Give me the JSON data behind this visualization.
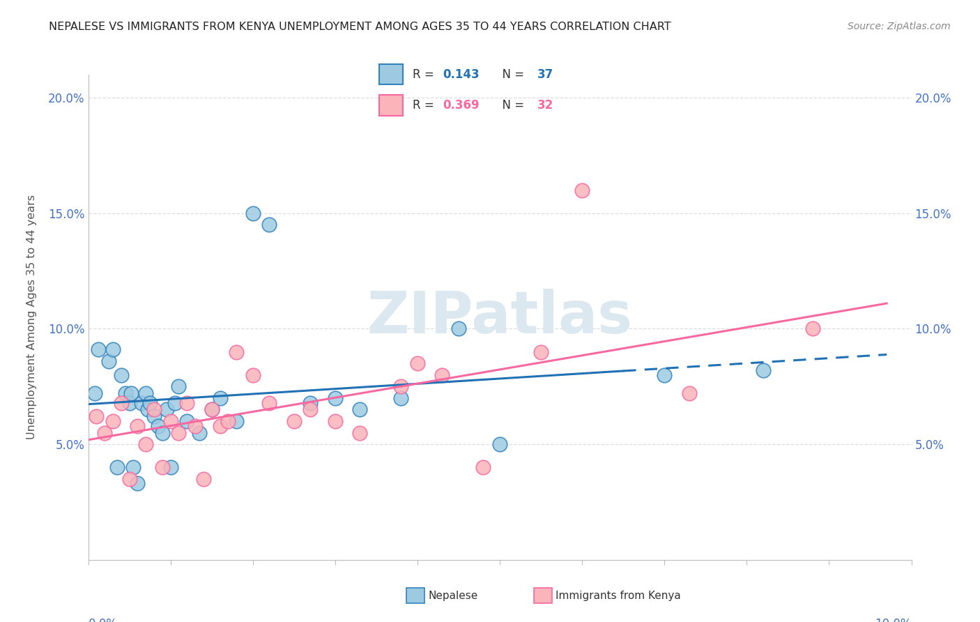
{
  "title": "NEPALESE VS IMMIGRANTS FROM KENYA UNEMPLOYMENT AMONG AGES 35 TO 44 YEARS CORRELATION CHART",
  "source": "Source: ZipAtlas.com",
  "ylabel": "Unemployment Among Ages 35 to 44 years",
  "xlim": [
    0.0,
    0.1
  ],
  "ylim": [
    0.0,
    0.21
  ],
  "ytick_values": [
    0.05,
    0.1,
    0.15,
    0.2
  ],
  "ytick_labels": [
    "5.0%",
    "10.0%",
    "15.0%",
    "20.0%"
  ],
  "legend_r1": "0.143",
  "legend_n1": "37",
  "legend_r2": "0.369",
  "legend_n2": "32",
  "color_blue_fill": "#9ecae1",
  "color_blue_edge": "#3182bd",
  "color_pink_fill": "#fbb4b9",
  "color_pink_edge": "#f768a1",
  "color_blue_line": "#2171b5",
  "color_pink_line": "#f768a1",
  "watermark_text": "ZIPatlas",
  "watermark_color": "#dce8f0",
  "grid_color": "#dddddd",
  "axis_label_color": "#4472c4",
  "title_color": "#222222",
  "source_color": "#888888",
  "nepalese_x": [
    0.0008,
    0.0012,
    0.0025,
    0.003,
    0.0035,
    0.004,
    0.0045,
    0.005,
    0.0052,
    0.0055,
    0.006,
    0.0065,
    0.007,
    0.0072,
    0.0075,
    0.008,
    0.0085,
    0.009,
    0.0095,
    0.01,
    0.0105,
    0.011,
    0.012,
    0.0135,
    0.015,
    0.016,
    0.018,
    0.02,
    0.022,
    0.027,
    0.03,
    0.033,
    0.038,
    0.045,
    0.05,
    0.07,
    0.082
  ],
  "nepalese_y": [
    0.072,
    0.091,
    0.086,
    0.091,
    0.04,
    0.08,
    0.072,
    0.068,
    0.072,
    0.04,
    0.033,
    0.068,
    0.072,
    0.065,
    0.068,
    0.062,
    0.058,
    0.055,
    0.065,
    0.04,
    0.068,
    0.075,
    0.06,
    0.055,
    0.065,
    0.07,
    0.06,
    0.15,
    0.145,
    0.068,
    0.07,
    0.065,
    0.07,
    0.1,
    0.05,
    0.08,
    0.082
  ],
  "kenya_x": [
    0.001,
    0.002,
    0.003,
    0.004,
    0.005,
    0.006,
    0.007,
    0.008,
    0.009,
    0.01,
    0.011,
    0.012,
    0.013,
    0.014,
    0.015,
    0.016,
    0.017,
    0.018,
    0.02,
    0.022,
    0.025,
    0.027,
    0.03,
    0.033,
    0.038,
    0.04,
    0.043,
    0.048,
    0.055,
    0.06,
    0.073,
    0.088
  ],
  "kenya_y": [
    0.062,
    0.055,
    0.06,
    0.068,
    0.035,
    0.058,
    0.05,
    0.065,
    0.04,
    0.06,
    0.055,
    0.068,
    0.058,
    0.035,
    0.065,
    0.058,
    0.06,
    0.09,
    0.08,
    0.068,
    0.06,
    0.065,
    0.06,
    0.055,
    0.075,
    0.085,
    0.08,
    0.04,
    0.09,
    0.16,
    0.072,
    0.1
  ]
}
